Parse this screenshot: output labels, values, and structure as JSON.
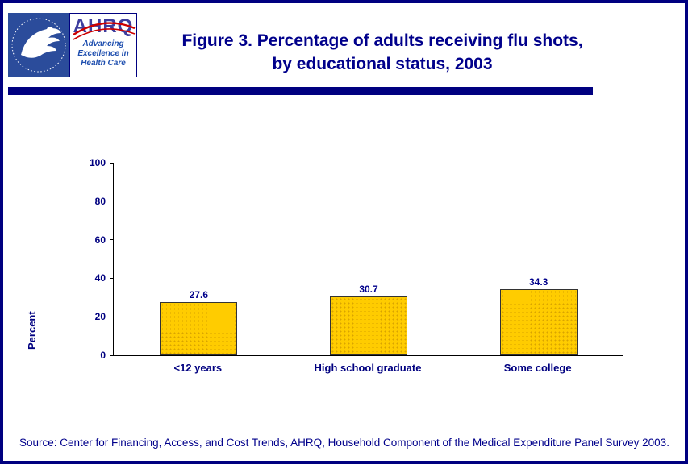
{
  "header": {
    "title_line1": "Figure 3. Percentage of adults receiving flu shots,",
    "title_line2": "by educational status, 2003",
    "ahrq_logo": {
      "acronym": "AHRQ",
      "tagline": [
        "Advancing",
        "Excellence in",
        "Health Care"
      ]
    }
  },
  "chart_data": {
    "type": "bar",
    "title": "Figure 3. Percentage of adults receiving flu shots, by educational status, 2003",
    "categories": [
      "<12 years",
      "High school graduate",
      "Some college"
    ],
    "values": [
      27.6,
      30.7,
      34.3
    ],
    "value_labels": [
      "27.6",
      "30.7",
      "34.3"
    ],
    "xlabel": "",
    "ylabel": "Percent",
    "ylim": [
      0,
      100
    ],
    "yticks": [
      0,
      20,
      40,
      60,
      80,
      100
    ],
    "grid": false,
    "legend": "none",
    "bar_color": "#FFCC00",
    "bar_border_color": "#333333"
  },
  "footer": {
    "source": "Source: Center for Financing, Access, and Cost Trends, AHRQ, Household Component of the Medical Expenditure Panel Survey 2003."
  },
  "colors": {
    "page_border": "#000080",
    "title_text": "#00008B",
    "axis_text": "#000080",
    "divider": "#000080",
    "bar_fill": "#FFCC00"
  }
}
